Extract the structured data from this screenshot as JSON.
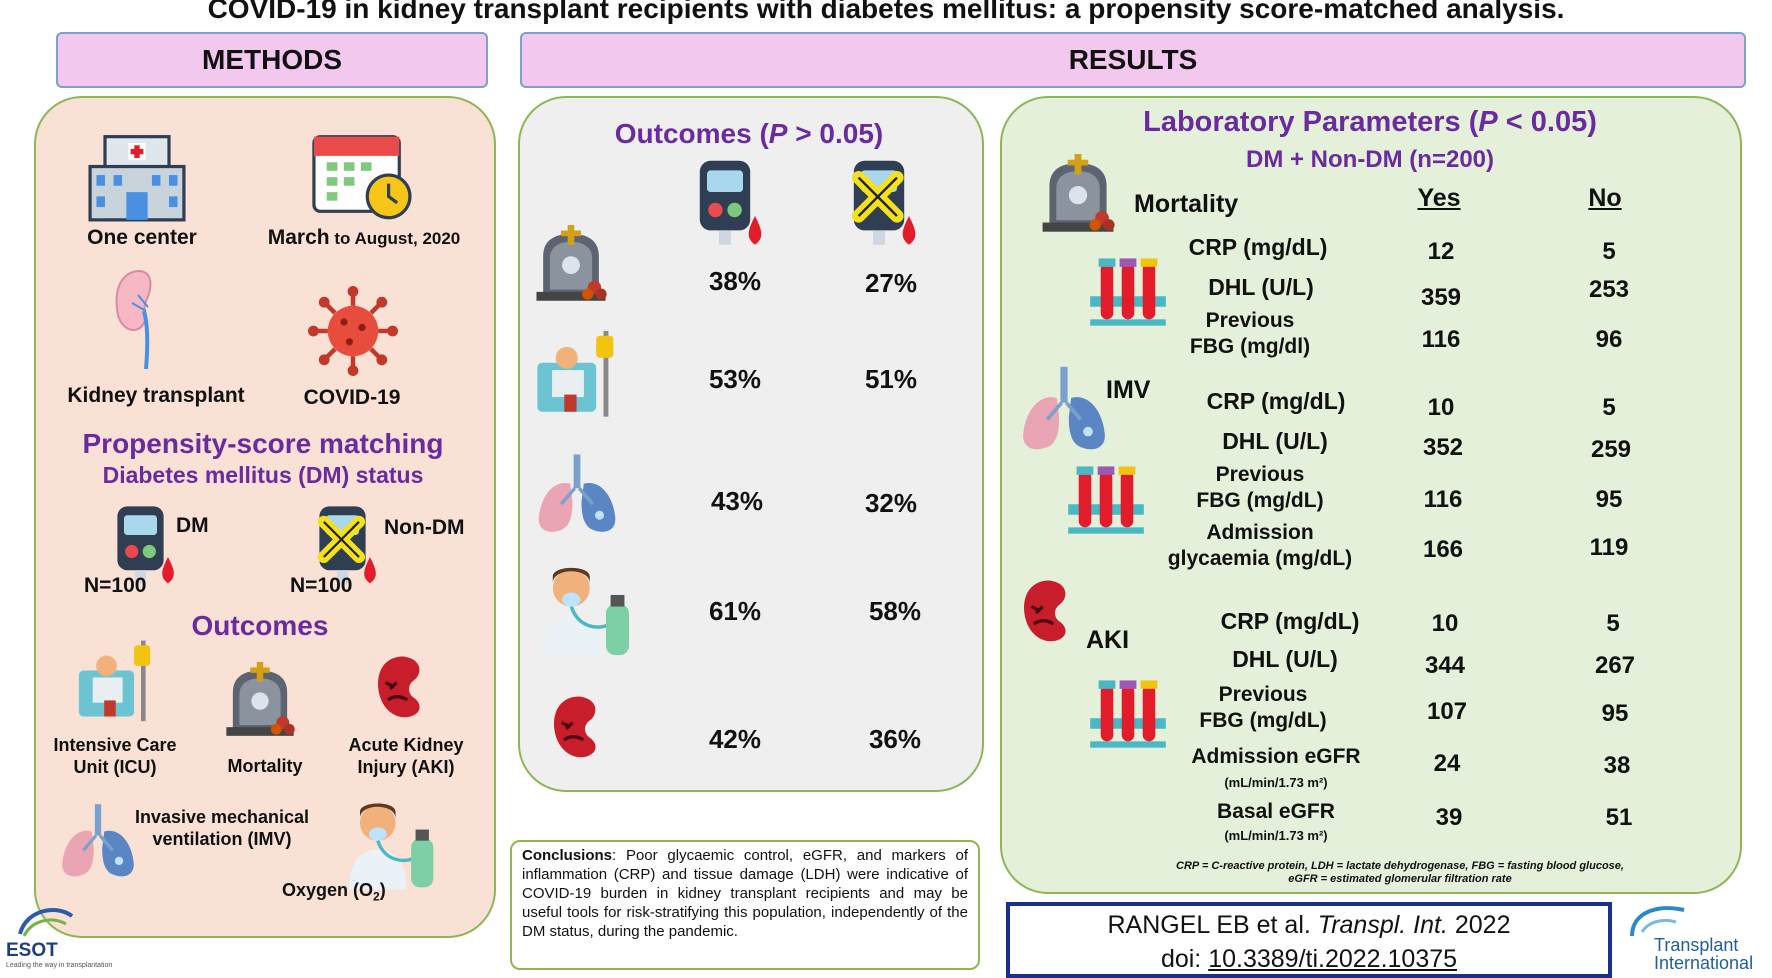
{
  "title": "COVID-19 in kidney transplant recipients with diabetes mellitus: a propensity score-matched analysis.",
  "methods": {
    "header": "METHODS",
    "one_center": "One center",
    "period_bold": "March",
    "period_rest": " to August, 2020",
    "kidney_transplant": "Kidney transplant",
    "covid": "COVID-19",
    "psm_title": "Propensity-score matching",
    "psm_subtitle": "Diabetes mellitus (DM) status",
    "dm_label": "DM",
    "nondm_label": "Non-DM",
    "dm_n": "N=100",
    "nondm_n": "N=100",
    "outcomes_title": "Outcomes",
    "icu_line1": "Intensive Care",
    "icu_line2": "Unit  (ICU)",
    "mortality": "Mortality",
    "aki_line1": "Acute Kidney",
    "aki_line2": "Injury  (AKI)",
    "imv_line1": "Invasive mechanical",
    "imv_line2": "ventilation (IMV)",
    "oxygen_text": "Oxygen (O",
    "oxygen_sub": "2",
    "oxygen_end": ")"
  },
  "results": {
    "header": "RESULTS",
    "outcomes": {
      "title_pre": "Outcomes (",
      "title_p": "P",
      "title_post": " > 0.05)",
      "rows": [
        {
          "icon": "tombstone-icon",
          "dm": "38%",
          "nondm": "27%"
        },
        {
          "icon": "icu-bed-icon",
          "dm": "53%",
          "nondm": "51%"
        },
        {
          "icon": "lungs-icon",
          "dm": "43%",
          "nondm": "32%"
        },
        {
          "icon": "oxygen-icon",
          "dm": "61%",
          "nondm": "58%"
        },
        {
          "icon": "kidney-icon",
          "dm": "42%",
          "nondm": "36%"
        }
      ]
    },
    "lab": {
      "title_pre": "Laboratory Parameters (",
      "title_p": "P",
      "title_post": " < 0.05)",
      "subtitle": "DM + Non-DM (n=200)",
      "mortality_label": "Mortality",
      "yes": "Yes",
      "no": "No",
      "imv_label": "IMV",
      "aki_label": "AKI",
      "mortality": [
        {
          "label": "CRP (mg/dL)",
          "yes": "12",
          "no": "5"
        },
        {
          "label": "DHL (U/L)",
          "yes": "359",
          "no": "253"
        },
        {
          "label1": "Previous",
          "label2": "FBG (mg/dl)",
          "yes": "116",
          "no": "96"
        }
      ],
      "imv": [
        {
          "label": "CRP (mg/dL)",
          "yes": "10",
          "no": "5"
        },
        {
          "label": "DHL (U/L)",
          "yes": "352",
          "no": "259"
        },
        {
          "label1": "Previous",
          "label2": "FBG (mg/dL)",
          "yes": "116",
          "no": "95"
        },
        {
          "label1": "Admission",
          "label2": "glycaemia (mg/dL)",
          "yes": "166",
          "no": "119"
        }
      ],
      "aki": [
        {
          "label": "CRP (mg/dL)",
          "yes": "10",
          "no": "5"
        },
        {
          "label": "DHL (U/L)",
          "yes": "344",
          "no": "267"
        },
        {
          "label1": "Previous",
          "label2": "FBG (mg/dL)",
          "yes": "107",
          "no": "95"
        },
        {
          "label1": "Admission eGFR",
          "label2": "(mL/min/1.73 m²)",
          "yes": "24",
          "no": "38"
        },
        {
          "label1": "Basal eGFR",
          "label2": "(mL/min/1.73 m²)",
          "yes": "39",
          "no": "51"
        }
      ],
      "footnote1": "CRP = C-reactive protein, LDH = lactate dehydrogenase, FBG = fasting blood glucose,",
      "footnote2": "eGFR = estimated glomerular filtration rate"
    }
  },
  "conclusions": {
    "label": "Conclusions",
    "text": ": Poor glycaemic control, eGFR, and markers of inflammation (CRP) and tissue damage (LDH) were indicative of COVID-19 burden in kidney transplant recipients and may be useful tools for risk-stratifying this population, independently of the DM status, during the pandemic."
  },
  "citation": {
    "authors": "RANGEL EB et al. ",
    "journal": "Transpl. Int.",
    "year": " 2022",
    "doi_pre": "doi: ",
    "doi": "10.3389/ti.2022.10375"
  },
  "logos": {
    "esot": "ESOT",
    "esot_tag": "Leading the way in transplantation",
    "ti_line1": "Transplant",
    "ti_line2": "International"
  },
  "colors": {
    "purple": "#6a2b9e",
    "header_pink": "#f3c8ef",
    "methods_bg": "#f9e1d6",
    "lab_bg": "#e4f0da",
    "border_green": "#8db657",
    "citation_blue": "#1b2f8f"
  }
}
